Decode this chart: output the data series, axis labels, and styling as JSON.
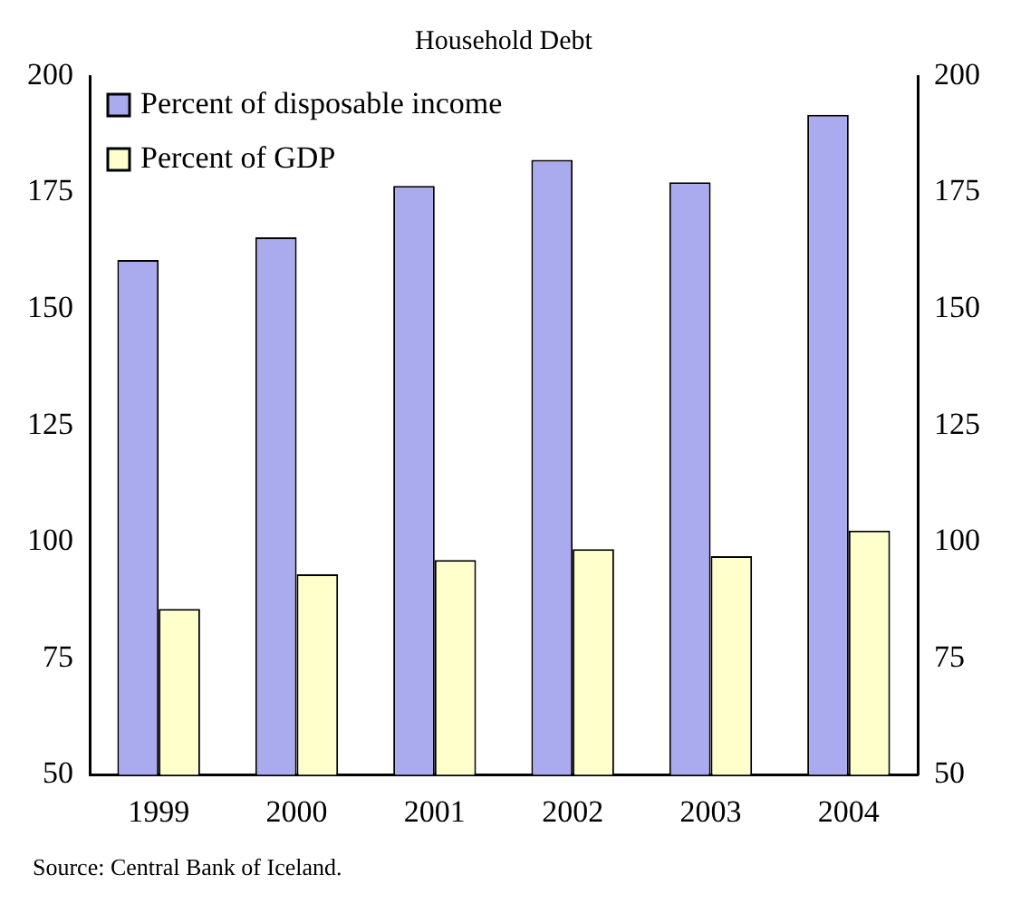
{
  "chart_data": {
    "type": "bar",
    "title": "Household Debt",
    "categories": [
      "1999",
      "2000",
      "2001",
      "2002",
      "2003",
      "2004"
    ],
    "series": [
      {
        "name": "Percent of disposable income",
        "color": "#aaaaee",
        "values": [
          160.5,
          165.4,
          176.4,
          182,
          177.2,
          191.7
        ]
      },
      {
        "name": "Percent of GDP",
        "color": "#ffffcc",
        "values": [
          85.6,
          93,
          96.1,
          98.4,
          96.9,
          102.4
        ]
      }
    ],
    "ylim": [
      50,
      200
    ],
    "yticks": [
      50,
      75,
      100,
      125,
      150,
      175,
      200
    ],
    "y2lim": [
      50,
      200
    ],
    "y2ticks": [
      50,
      75,
      100,
      125,
      150,
      175,
      200
    ],
    "grid": false,
    "legend": "top left",
    "annotations": [
      "Source: Central Bank of Iceland."
    ]
  }
}
